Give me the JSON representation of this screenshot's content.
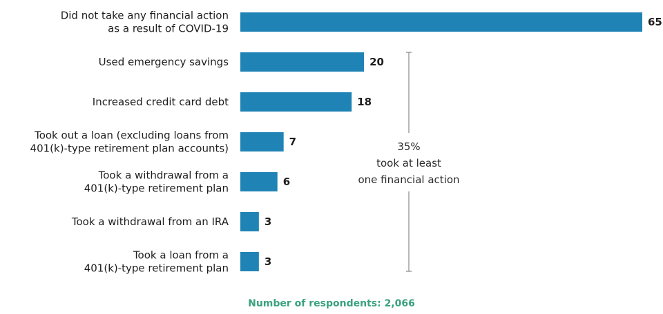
{
  "chart_data": {
    "type": "bar",
    "orientation": "horizontal",
    "categories": [
      [
        "Did not take any financial action",
        "as a result of COVID-19"
      ],
      [
        "Used emergency savings"
      ],
      [
        "Increased credit card debt"
      ],
      [
        "Took out a loan (excluding loans from",
        "401(k)-type retirement plan accounts)"
      ],
      [
        "Took a withdrawal from a",
        "401(k)-type retirement plan"
      ],
      [
        "Took a withdrawal from an IRA"
      ],
      [
        "Took a loan from a",
        "401(k)-type retirement plan"
      ]
    ],
    "values": [
      65,
      20,
      18,
      7,
      6,
      3,
      3
    ],
    "xlim": [
      0,
      65
    ],
    "bar_color": "#1f84b5",
    "annotation": {
      "percent": "35%",
      "lines": [
        "took at least",
        "one financial action"
      ],
      "covers_categories": [
        1,
        6
      ]
    },
    "title": "",
    "xlabel": "",
    "ylabel": ""
  },
  "footer": {
    "note": "Number of respondents: 2,066",
    "color": "#3aa17e"
  }
}
